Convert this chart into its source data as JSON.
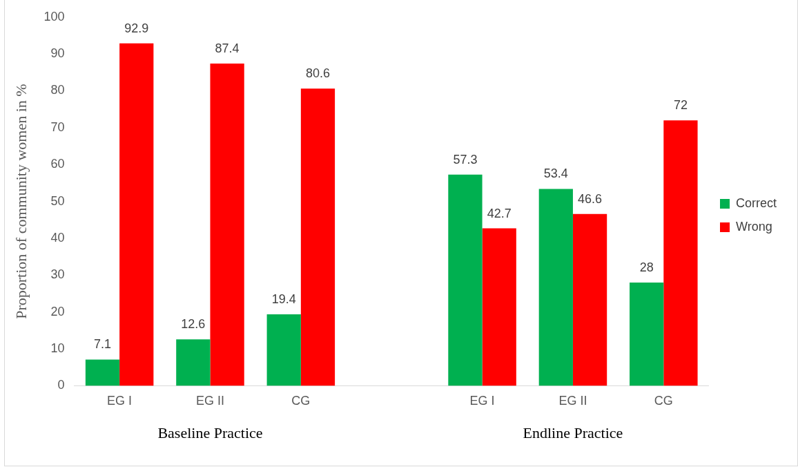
{
  "chart_data": {
    "type": "bar",
    "ylabel": "Proportion of community women in %",
    "categories": [
      "EG I",
      "EG II",
      "CG",
      null,
      "EG I",
      "EG II",
      "CG"
    ],
    "series": [
      {
        "name": "Correct",
        "color": "#00b050",
        "values": [
          7.1,
          12.6,
          19.4,
          null,
          57.3,
          53.4,
          28
        ]
      },
      {
        "name": "Wrong",
        "color": "#ff0000",
        "values": [
          92.9,
          87.4,
          80.6,
          null,
          42.7,
          46.6,
          72
        ]
      }
    ],
    "ylim": [
      0,
      100
    ],
    "yticks": [
      0,
      10,
      20,
      30,
      40,
      50,
      60,
      70,
      80,
      90,
      100
    ],
    "grid": false,
    "legend": "right",
    "data_labels": true,
    "annotations": [
      "Baseline Practice",
      "Endline Practice"
    ]
  }
}
